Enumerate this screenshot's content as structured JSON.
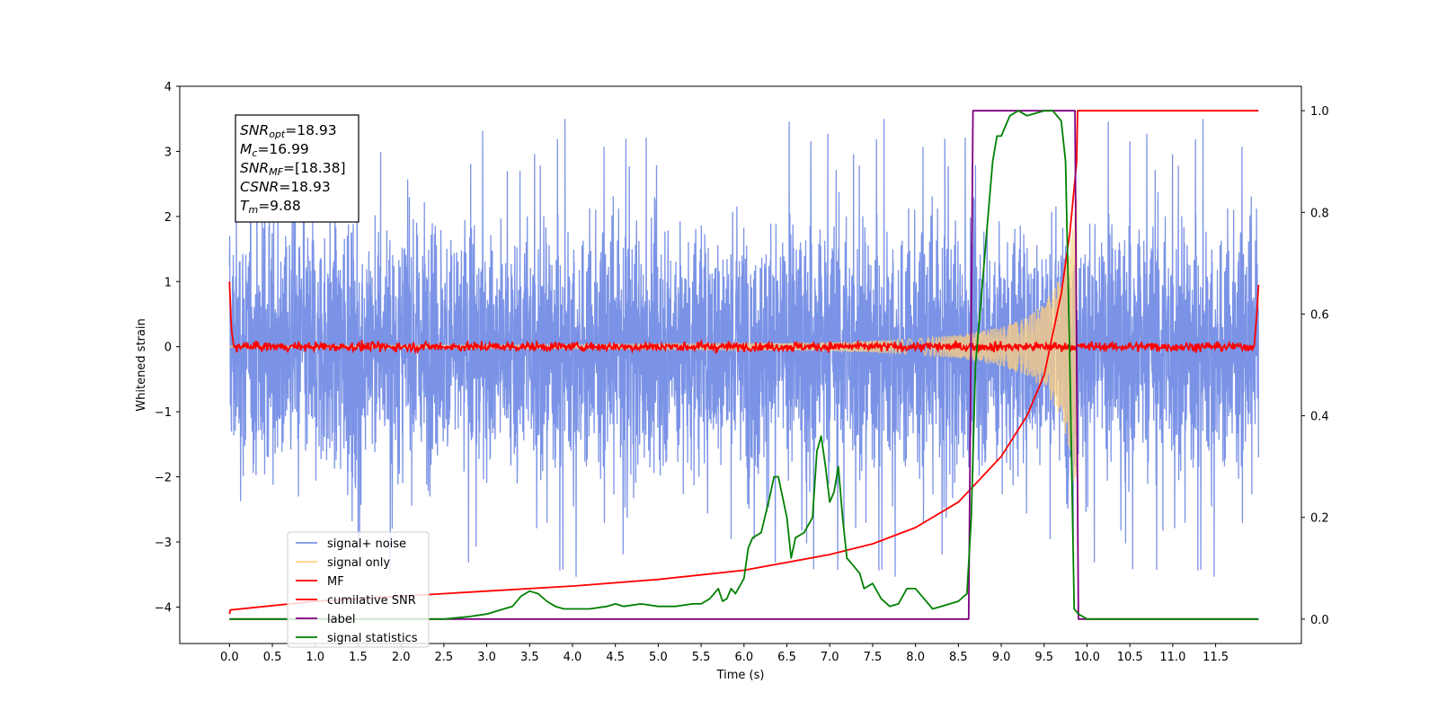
{
  "chart_data": {
    "type": "line",
    "xlabel": "Time (s)",
    "ylabel": "Whitened strain",
    "xlim": [
      -0.58,
      12.5
    ],
    "ylim": [
      -4.56,
      4.0
    ],
    "y2lim": [
      -0.048,
      1.048
    ],
    "xticks": [
      "0.0",
      "0.5",
      "1.0",
      "1.5",
      "2.0",
      "2.5",
      "3.0",
      "3.5",
      "4.0",
      "4.5",
      "5.0",
      "5.5",
      "6.0",
      "6.5",
      "7.0",
      "7.5",
      "8.0",
      "8.5",
      "9.0",
      "9.5",
      "10.0",
      "10.5",
      "11.0",
      "11.5"
    ],
    "yticks": [
      "4",
      "3",
      "2",
      "1",
      "0",
      "−1",
      "−2",
      "−3",
      "−4"
    ],
    "y2ticks": [
      "1.0",
      "0.8",
      "0.6",
      "0.4",
      "0.2",
      "0.0"
    ],
    "legend_position": "lower-left",
    "grid": false,
    "info_box": {
      "snr_opt": {
        "sym": "SNR",
        "sub": "opt",
        "val": "=18.93"
      },
      "mc": {
        "sym": "M",
        "sub": "c",
        "val": "=16.99"
      },
      "snr_mf": {
        "sym": "SNR",
        "sub": "MF",
        "val": "=[18.38]"
      },
      "csnr": {
        "sym": "CSNR",
        "sub": "",
        "val": "=18.93"
      },
      "tm": {
        "sym": "T",
        "sub": "m",
        "val": "=9.88"
      }
    },
    "series": [
      {
        "name": "signal+ noise",
        "color": "#7b93e6",
        "axis": "left",
        "description_values": {
          "x_range": [
            0.0,
            12.0
          ],
          "typical_amplitude": 1.3,
          "max": 3.6,
          "min": -4.15
        }
      },
      {
        "name": "signal only",
        "color": "#ffd080",
        "axis": "left",
        "x": [
          0.0,
          1.0,
          2.0,
          3.0,
          4.0,
          5.0,
          6.0,
          7.0,
          7.5,
          8.0,
          8.5,
          9.0,
          9.3,
          9.5,
          9.7,
          9.8,
          9.88
        ],
        "envelope": [
          0.01,
          0.015,
          0.02,
          0.025,
          0.03,
          0.04,
          0.05,
          0.07,
          0.09,
          0.12,
          0.18,
          0.3,
          0.45,
          0.65,
          1.1,
          1.6,
          2.4
        ]
      },
      {
        "name": "MF",
        "color": "#ff0000",
        "axis": "left",
        "x": [
          0.0,
          0.02,
          0.05,
          0.1,
          6.0,
          11.95,
          11.98,
          12.0
        ],
        "y": [
          1.0,
          0.3,
          0.0,
          0.0,
          0.0,
          0.0,
          0.5,
          0.95
        ]
      },
      {
        "name": "cumilative SNR",
        "color": "#ff0000",
        "axis": "right",
        "x": [
          0.0,
          0.01,
          1.0,
          2.0,
          3.0,
          4.0,
          5.0,
          6.0,
          7.0,
          7.5,
          8.0,
          8.5,
          9.0,
          9.3,
          9.5,
          9.7,
          9.8,
          9.88,
          9.89,
          12.0
        ],
        "y": [
          0.01,
          0.018,
          0.035,
          0.045,
          0.055,
          0.065,
          0.078,
          0.096,
          0.127,
          0.148,
          0.18,
          0.23,
          0.32,
          0.4,
          0.48,
          0.64,
          0.76,
          0.9,
          1.0,
          1.0
        ]
      },
      {
        "name": "label",
        "color": "#800080",
        "axis": "right",
        "x": [
          0.0,
          8.62,
          8.67,
          9.86,
          9.9,
          12.0
        ],
        "y": [
          0.0,
          0.0,
          1.0,
          1.0,
          0.0,
          0.0
        ]
      },
      {
        "name": "signal statistics",
        "color": "#008000",
        "axis": "right",
        "x": [
          0.0,
          0.5,
          1.0,
          1.5,
          2.0,
          2.5,
          2.8,
          3.0,
          3.1,
          3.2,
          3.3,
          3.4,
          3.5,
          3.6,
          3.7,
          3.8,
          3.9,
          4.0,
          4.2,
          4.4,
          4.5,
          4.6,
          4.8,
          5.0,
          5.2,
          5.4,
          5.5,
          5.6,
          5.7,
          5.75,
          5.8,
          5.85,
          5.9,
          6.0,
          6.05,
          6.1,
          6.2,
          6.3,
          6.35,
          6.4,
          6.5,
          6.55,
          6.6,
          6.7,
          6.8,
          6.85,
          6.9,
          6.95,
          7.0,
          7.05,
          7.1,
          7.15,
          7.2,
          7.25,
          7.3,
          7.35,
          7.4,
          7.5,
          7.6,
          7.7,
          7.8,
          7.9,
          8.0,
          8.1,
          8.2,
          8.3,
          8.4,
          8.5,
          8.6,
          8.65,
          8.7,
          8.75,
          8.8,
          8.85,
          8.9,
          8.95,
          9.0,
          9.05,
          9.1,
          9.2,
          9.3,
          9.4,
          9.5,
          9.6,
          9.7,
          9.75,
          9.8,
          9.85,
          9.9,
          9.95,
          10.0,
          10.2,
          12.0
        ],
        "y": [
          0.0,
          0.0,
          0.0,
          0.0,
          0.0,
          0.0,
          0.005,
          0.01,
          0.015,
          0.02,
          0.025,
          0.045,
          0.055,
          0.05,
          0.035,
          0.025,
          0.02,
          0.02,
          0.02,
          0.025,
          0.03,
          0.025,
          0.03,
          0.025,
          0.025,
          0.03,
          0.03,
          0.04,
          0.06,
          0.035,
          0.04,
          0.06,
          0.05,
          0.08,
          0.14,
          0.16,
          0.17,
          0.24,
          0.28,
          0.28,
          0.2,
          0.12,
          0.16,
          0.17,
          0.2,
          0.33,
          0.36,
          0.3,
          0.23,
          0.25,
          0.3,
          0.2,
          0.12,
          0.11,
          0.1,
          0.09,
          0.06,
          0.07,
          0.04,
          0.025,
          0.03,
          0.06,
          0.06,
          0.04,
          0.02,
          0.025,
          0.03,
          0.035,
          0.05,
          0.2,
          0.5,
          0.6,
          0.7,
          0.8,
          0.9,
          0.95,
          0.95,
          0.97,
          0.99,
          1.0,
          0.99,
          0.995,
          1.0,
          1.0,
          0.98,
          0.9,
          0.5,
          0.02,
          0.01,
          0.005,
          0.0,
          0.0,
          0.0
        ]
      }
    ]
  }
}
